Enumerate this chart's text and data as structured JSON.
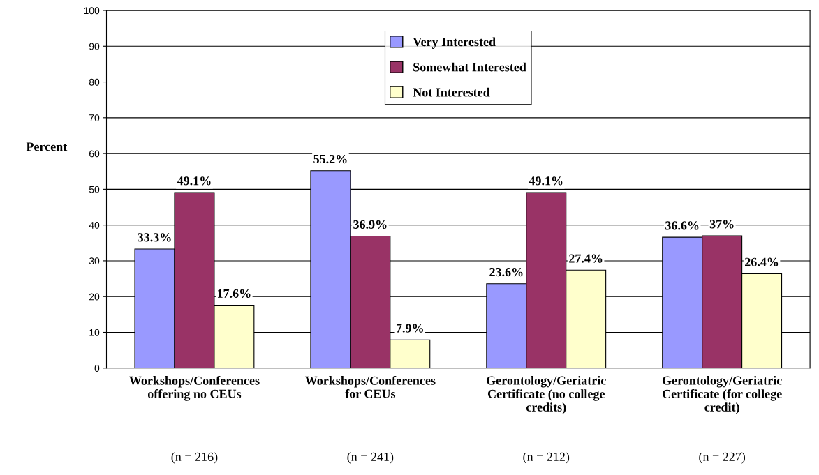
{
  "chart_data": {
    "type": "bar",
    "ylabel": "Percent",
    "categories": [
      "Workshops/Conferences\noffering no CEUs",
      "Workshops/Conferences\nfor CEUs",
      "Gerontology/Geriatric\nCertificate (no college\ncredits)",
      "Gerontology/Geriatric\nCertificate (for college\ncredit)"
    ],
    "series": [
      {
        "name": "Very Interested",
        "color": "#9999ff",
        "values": [
          33.3,
          55.2,
          23.6,
          36.6
        ],
        "value_labels": [
          "33.3%",
          "55.2%",
          "23.6%",
          "36.6%"
        ]
      },
      {
        "name": "Somewhat Interested",
        "color": "#993366",
        "values": [
          49.1,
          36.9,
          49.1,
          37
        ],
        "value_labels": [
          "49.1%",
          "36.9%",
          "49.1%",
          "37%"
        ]
      },
      {
        "name": "Not Interested",
        "color": "#ffffcc",
        "values": [
          17.6,
          7.9,
          27.4,
          26.4
        ],
        "value_labels": [
          "17.6%",
          "7.9%",
          "27.4%",
          "26.4%"
        ]
      }
    ],
    "annotations": [
      "(n = 216)",
      "(n = 241)",
      "(n = 212)",
      "(n = 227)"
    ],
    "ylim": [
      0,
      100
    ],
    "yticks": [
      0,
      10,
      20,
      30,
      40,
      50,
      60,
      70,
      80,
      90,
      100
    ],
    "grid": "y",
    "legend": "top"
  }
}
